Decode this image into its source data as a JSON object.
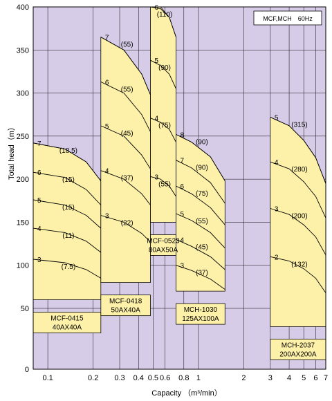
{
  "chart_data": {
    "type": "area",
    "title": "",
    "legend": "MCF,MCH　60Hz",
    "xlabel_prefix": "Capacity",
    "xlabel_unit": "（m³/min）",
    "ylabel": "Total head（m）",
    "xscale": "log",
    "xlim": [
      0.08,
      7
    ],
    "ylim": [
      0,
      400
    ],
    "grid": true,
    "colors": {
      "background": "#d7cce8",
      "region": "#fdf0a8",
      "grid": "#000000"
    },
    "x_ticks": [
      {
        "v": 0.1,
        "label": "0.1"
      },
      {
        "v": 0.2,
        "label": "0.2"
      },
      {
        "v": 0.3,
        "label": "0.3"
      },
      {
        "v": 0.4,
        "label": "0.4"
      },
      {
        "v": 0.5,
        "label": "0.5"
      },
      {
        "v": 0.6,
        "label": "0.6"
      },
      {
        "v": 0.8,
        "label": "0.8"
      },
      {
        "v": 1,
        "label": "1"
      },
      {
        "v": 2,
        "label": "2"
      },
      {
        "v": 3,
        "label": "3"
      },
      {
        "v": 4,
        "label": "4"
      },
      {
        "v": 5,
        "label": "5"
      },
      {
        "v": 6,
        "label": "6"
      },
      {
        "v": 7,
        "label": "7"
      }
    ],
    "y_ticks": [
      {
        "v": 0,
        "label": "0"
      },
      {
        "v": 50,
        "label": "50"
      },
      {
        "v": 100,
        "label": "100"
      },
      {
        "v": 150,
        "label": "150"
      },
      {
        "v": 200,
        "label": "200"
      },
      {
        "v": 250,
        "label": "250"
      },
      {
        "v": 300,
        "label": "300"
      },
      {
        "v": 350,
        "label": "350"
      },
      {
        "v": 400,
        "label": "400"
      }
    ],
    "pumps": [
      {
        "model": "MCF-0415",
        "size": "40AX40A",
        "q_range": [
          0.08,
          0.225
        ],
        "boundary": [
          [
            0.08,
            242
          ],
          [
            0.13,
            235
          ],
          [
            0.18,
            220
          ],
          [
            0.225,
            198
          ],
          [
            0.225,
            60
          ],
          [
            0.08,
            60
          ]
        ],
        "curves": [
          {
            "stages": "7",
            "kw": "(18.5)",
            "pts": [
              [
                0.08,
                242
              ],
              [
                0.13,
                235
              ],
              [
                0.18,
                220
              ],
              [
                0.225,
                198
              ]
            ]
          },
          {
            "stages": "6",
            "kw": "(15)",
            "pts": [
              [
                0.08,
                208
              ],
              [
                0.13,
                202
              ],
              [
                0.18,
                188
              ],
              [
                0.225,
                170
              ]
            ]
          },
          {
            "stages": "5",
            "kw": "(15)",
            "pts": [
              [
                0.08,
                176
              ],
              [
                0.13,
                170
              ],
              [
                0.18,
                158
              ],
              [
                0.225,
                143
              ]
            ]
          },
          {
            "stages": "4",
            "kw": "(11)",
            "pts": [
              [
                0.08,
                143
              ],
              [
                0.13,
                138
              ],
              [
                0.18,
                128
              ],
              [
                0.225,
                115
              ]
            ]
          },
          {
            "stages": "3",
            "kw": "(7.5)",
            "pts": [
              [
                0.08,
                107
              ],
              [
                0.13,
                103
              ],
              [
                0.18,
                95
              ],
              [
                0.225,
                85
              ]
            ]
          }
        ]
      },
      {
        "model": "MCF-0418",
        "size": "50AX40A",
        "q_range": [
          0.225,
          0.48
        ],
        "boundary": [
          [
            0.225,
            365
          ],
          [
            0.32,
            350
          ],
          [
            0.42,
            322
          ],
          [
            0.48,
            298
          ],
          [
            0.48,
            80
          ],
          [
            0.225,
            80
          ]
        ],
        "curves": [
          {
            "stages": "7",
            "kw": "(55)",
            "pts": [
              [
                0.225,
                365
              ],
              [
                0.32,
                350
              ],
              [
                0.42,
                322
              ],
              [
                0.48,
                298
              ]
            ]
          },
          {
            "stages": "6",
            "kw": "(55)",
            "pts": [
              [
                0.225,
                313
              ],
              [
                0.32,
                300
              ],
              [
                0.42,
                275
              ],
              [
                0.48,
                255
              ]
            ]
          },
          {
            "stages": "5",
            "kw": "(45)",
            "pts": [
              [
                0.225,
                262
              ],
              [
                0.32,
                250
              ],
              [
                0.42,
                228
              ],
              [
                0.48,
                212
              ]
            ]
          },
          {
            "stages": "4",
            "kw": "(37)",
            "pts": [
              [
                0.225,
                210
              ],
              [
                0.32,
                200
              ],
              [
                0.42,
                183
              ],
              [
                0.48,
                170
              ]
            ]
          },
          {
            "stages": "3",
            "kw": "(22)",
            "pts": [
              [
                0.225,
                158
              ],
              [
                0.32,
                150
              ],
              [
                0.42,
                137
              ],
              [
                0.48,
                127
              ]
            ]
          }
        ]
      },
      {
        "model": "MCF-0523",
        "size": "80AX50A",
        "q_range": [
          0.48,
          0.71
        ],
        "boundary": [
          [
            0.48,
            400
          ],
          [
            0.56,
            400
          ],
          [
            0.64,
            388
          ],
          [
            0.71,
            365
          ],
          [
            0.71,
            150
          ],
          [
            0.48,
            150
          ]
        ],
        "curves": [
          {
            "stages": "6",
            "kw": "(110)",
            "pts": [
              [
                0.48,
                405
              ],
              [
                0.56,
                398
              ],
              [
                0.64,
                388
              ],
              [
                0.71,
                365
              ]
            ]
          },
          {
            "stages": "5",
            "kw": "(90)",
            "pts": [
              [
                0.48,
                338
              ],
              [
                0.56,
                332
              ],
              [
                0.64,
                322
              ],
              [
                0.71,
                305
              ]
            ]
          },
          {
            "stages": "4",
            "kw": "(75)",
            "pts": [
              [
                0.48,
                271
              ],
              [
                0.56,
                266
              ],
              [
                0.64,
                258
              ],
              [
                0.71,
                243
              ]
            ]
          },
          {
            "stages": "3",
            "kw": "(55)",
            "pts": [
              [
                0.48,
                203
              ],
              [
                0.56,
                200
              ],
              [
                0.64,
                192
              ],
              [
                0.71,
                180
              ]
            ]
          }
        ]
      },
      {
        "model": "MCH-1030",
        "size": "125AX100A",
        "q_range": [
          0.71,
          1.5
        ],
        "boundary": [
          [
            0.71,
            252
          ],
          [
            0.9,
            243
          ],
          [
            1.2,
            226
          ],
          [
            1.5,
            198
          ],
          [
            1.5,
            70
          ],
          [
            0.71,
            70
          ]
        ],
        "curves": [
          {
            "stages": "8",
            "kw": "(90)",
            "pts": [
              [
                0.71,
                252
              ],
              [
                0.9,
                243
              ],
              [
                1.2,
                226
              ],
              [
                1.5,
                198
              ]
            ]
          },
          {
            "stages": "7",
            "kw": "(90)",
            "pts": [
              [
                0.71,
                222
              ],
              [
                0.9,
                213
              ],
              [
                1.2,
                196
              ],
              [
                1.5,
                172
              ]
            ]
          },
          {
            "stages": "6",
            "kw": "(75)",
            "pts": [
              [
                0.71,
                192
              ],
              [
                0.9,
                183
              ],
              [
                1.2,
                167
              ],
              [
                1.5,
                147
              ]
            ]
          },
          {
            "stages": "5",
            "kw": "(55)",
            "pts": [
              [
                0.71,
                160
              ],
              [
                0.9,
                152
              ],
              [
                1.2,
                138
              ],
              [
                1.5,
                120
              ]
            ]
          },
          {
            "stages": "4",
            "kw": "(45)",
            "pts": [
              [
                0.71,
                130
              ],
              [
                0.9,
                122
              ],
              [
                1.2,
                110
              ],
              [
                1.5,
                95
              ]
            ]
          },
          {
            "stages": "3",
            "kw": "(37)",
            "pts": [
              [
                0.71,
                100
              ],
              [
                0.9,
                94
              ],
              [
                1.2,
                84
              ],
              [
                1.5,
                72
              ]
            ]
          }
        ]
      },
      {
        "model": "MCH-2037",
        "size": "200AX200A",
        "q_range": [
          3,
          7
        ],
        "boundary": [
          [
            3,
            272
          ],
          [
            4,
            262
          ],
          [
            5,
            245
          ],
          [
            6,
            225
          ],
          [
            7,
            195
          ],
          [
            7,
            35
          ],
          [
            3,
            35
          ]
        ],
        "curves": [
          {
            "stages": "5",
            "kw": "(315)",
            "pts": [
              [
                3,
                272
              ],
              [
                4,
                262
              ],
              [
                5,
                245
              ],
              [
                6,
                225
              ],
              [
                7,
                195
              ]
            ]
          },
          {
            "stages": "4",
            "kw": "(280)",
            "pts": [
              [
                3,
                220
              ],
              [
                4,
                212
              ],
              [
                5,
                197
              ],
              [
                6,
                180
              ],
              [
                7,
                155
              ]
            ]
          },
          {
            "stages": "3",
            "kw": "(200)",
            "pts": [
              [
                3,
                166
              ],
              [
                4,
                159
              ],
              [
                5,
                147
              ],
              [
                6,
                133
              ],
              [
                7,
                112
              ]
            ]
          },
          {
            "stages": "2",
            "kw": "(132)",
            "pts": [
              [
                3,
                110
              ],
              [
                4,
                105
              ],
              [
                5,
                96
              ],
              [
                6,
                85
              ],
              [
                7,
                68
              ]
            ]
          }
        ]
      }
    ]
  }
}
